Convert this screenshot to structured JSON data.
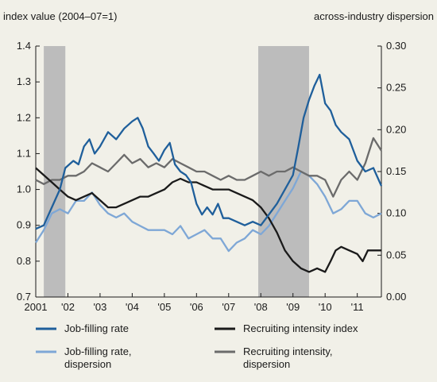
{
  "chart_data": {
    "type": "line",
    "y_left_label": "index value (2004–07=1)",
    "y_right_label": "across-industry dispersion",
    "x_ticks": [
      "2001",
      "'02",
      "'03",
      "'04",
      "'05",
      "'06",
      "'07",
      "'08",
      "'09",
      "'10",
      "'11"
    ],
    "x_range": [
      2001,
      2011.75
    ],
    "y_left": {
      "min": 0.7,
      "max": 1.4,
      "ticks": [
        "0.7",
        "0.8",
        "0.9",
        "1.0",
        "1.1",
        "1.2",
        "1.3",
        "1.4"
      ]
    },
    "y_right": {
      "min": 0.0,
      "max": 0.3,
      "ticks": [
        "0.00",
        "0.05",
        "0.10",
        "0.15",
        "0.20",
        "0.25",
        "0.30"
      ]
    },
    "recessions": [
      [
        2001.25,
        2001.92
      ],
      [
        2007.92,
        2009.5
      ]
    ],
    "grid": false,
    "legend_position": "bottom",
    "series": [
      {
        "name": "Job-filling rate",
        "axis": "left",
        "color": "#1f5f9b",
        "points": [
          [
            2001.0,
            0.89
          ],
          [
            2001.25,
            0.9
          ],
          [
            2001.5,
            0.95
          ],
          [
            2001.75,
            1.0
          ],
          [
            2001.92,
            1.06
          ],
          [
            2002.17,
            1.08
          ],
          [
            2002.33,
            1.07
          ],
          [
            2002.5,
            1.12
          ],
          [
            2002.67,
            1.14
          ],
          [
            2002.83,
            1.1
          ],
          [
            2003.0,
            1.12
          ],
          [
            2003.25,
            1.16
          ],
          [
            2003.5,
            1.14
          ],
          [
            2003.75,
            1.17
          ],
          [
            2004.0,
            1.19
          ],
          [
            2004.17,
            1.2
          ],
          [
            2004.33,
            1.17
          ],
          [
            2004.5,
            1.12
          ],
          [
            2004.67,
            1.1
          ],
          [
            2004.83,
            1.08
          ],
          [
            2005.0,
            1.11
          ],
          [
            2005.17,
            1.13
          ],
          [
            2005.33,
            1.07
          ],
          [
            2005.5,
            1.05
          ],
          [
            2005.67,
            1.04
          ],
          [
            2005.83,
            1.02
          ],
          [
            2006.0,
            0.96
          ],
          [
            2006.17,
            0.93
          ],
          [
            2006.33,
            0.95
          ],
          [
            2006.5,
            0.93
          ],
          [
            2006.67,
            0.96
          ],
          [
            2006.83,
            0.92
          ],
          [
            2007.0,
            0.92
          ],
          [
            2007.25,
            0.91
          ],
          [
            2007.5,
            0.9
          ],
          [
            2007.75,
            0.91
          ],
          [
            2008.0,
            0.9
          ],
          [
            2008.25,
            0.93
          ],
          [
            2008.5,
            0.96
          ],
          [
            2008.75,
            1.0
          ],
          [
            2009.0,
            1.04
          ],
          [
            2009.17,
            1.12
          ],
          [
            2009.33,
            1.2
          ],
          [
            2009.5,
            1.25
          ],
          [
            2009.67,
            1.29
          ],
          [
            2009.83,
            1.32
          ],
          [
            2010.0,
            1.24
          ],
          [
            2010.17,
            1.22
          ],
          [
            2010.33,
            1.18
          ],
          [
            2010.5,
            1.16
          ],
          [
            2010.75,
            1.14
          ],
          [
            2011.0,
            1.08
          ],
          [
            2011.25,
            1.05
          ],
          [
            2011.5,
            1.06
          ],
          [
            2011.75,
            1.01
          ]
        ]
      },
      {
        "name": "Recruiting intensity index",
        "axis": "left",
        "color": "#1a1a1a",
        "points": [
          [
            2001.0,
            1.06
          ],
          [
            2001.25,
            1.04
          ],
          [
            2001.5,
            1.02
          ],
          [
            2001.75,
            1.0
          ],
          [
            2002.0,
            0.98
          ],
          [
            2002.25,
            0.97
          ],
          [
            2002.5,
            0.98
          ],
          [
            2002.75,
            0.99
          ],
          [
            2003.0,
            0.97
          ],
          [
            2003.25,
            0.95
          ],
          [
            2003.5,
            0.95
          ],
          [
            2003.75,
            0.96
          ],
          [
            2004.0,
            0.97
          ],
          [
            2004.25,
            0.98
          ],
          [
            2004.5,
            0.98
          ],
          [
            2004.75,
            0.99
          ],
          [
            2005.0,
            1.0
          ],
          [
            2005.25,
            1.02
          ],
          [
            2005.5,
            1.03
          ],
          [
            2005.75,
            1.02
          ],
          [
            2006.0,
            1.02
          ],
          [
            2006.25,
            1.01
          ],
          [
            2006.5,
            1.0
          ],
          [
            2006.75,
            1.0
          ],
          [
            2007.0,
            1.0
          ],
          [
            2007.25,
            0.99
          ],
          [
            2007.5,
            0.98
          ],
          [
            2007.75,
            0.97
          ],
          [
            2008.0,
            0.95
          ],
          [
            2008.25,
            0.92
          ],
          [
            2008.5,
            0.88
          ],
          [
            2008.75,
            0.83
          ],
          [
            2009.0,
            0.8
          ],
          [
            2009.25,
            0.78
          ],
          [
            2009.5,
            0.77
          ],
          [
            2009.75,
            0.78
          ],
          [
            2010.0,
            0.77
          ],
          [
            2010.17,
            0.8
          ],
          [
            2010.33,
            0.83
          ],
          [
            2010.5,
            0.84
          ],
          [
            2010.75,
            0.83
          ],
          [
            2011.0,
            0.82
          ],
          [
            2011.17,
            0.8
          ],
          [
            2011.33,
            0.83
          ],
          [
            2011.5,
            0.83
          ],
          [
            2011.75,
            0.83
          ]
        ]
      },
      {
        "name": "Job-filling rate, dispersion",
        "axis": "right",
        "color": "#7ea7d6",
        "points": [
          [
            2001.0,
            0.065
          ],
          [
            2001.25,
            0.08
          ],
          [
            2001.5,
            0.1
          ],
          [
            2001.75,
            0.105
          ],
          [
            2002.0,
            0.1
          ],
          [
            2002.25,
            0.115
          ],
          [
            2002.5,
            0.115
          ],
          [
            2002.75,
            0.125
          ],
          [
            2003.0,
            0.11
          ],
          [
            2003.25,
            0.1
          ],
          [
            2003.5,
            0.095
          ],
          [
            2003.75,
            0.1
          ],
          [
            2004.0,
            0.09
          ],
          [
            2004.25,
            0.085
          ],
          [
            2004.5,
            0.08
          ],
          [
            2004.75,
            0.08
          ],
          [
            2005.0,
            0.08
          ],
          [
            2005.25,
            0.075
          ],
          [
            2005.5,
            0.085
          ],
          [
            2005.75,
            0.07
          ],
          [
            2006.0,
            0.075
          ],
          [
            2006.25,
            0.08
          ],
          [
            2006.5,
            0.07
          ],
          [
            2006.75,
            0.07
          ],
          [
            2007.0,
            0.055
          ],
          [
            2007.25,
            0.065
          ],
          [
            2007.5,
            0.07
          ],
          [
            2007.75,
            0.08
          ],
          [
            2008.0,
            0.075
          ],
          [
            2008.25,
            0.085
          ],
          [
            2008.5,
            0.1
          ],
          [
            2008.75,
            0.115
          ],
          [
            2009.0,
            0.13
          ],
          [
            2009.25,
            0.15
          ],
          [
            2009.5,
            0.145
          ],
          [
            2009.75,
            0.135
          ],
          [
            2010.0,
            0.12
          ],
          [
            2010.25,
            0.1
          ],
          [
            2010.5,
            0.105
          ],
          [
            2010.75,
            0.115
          ],
          [
            2011.0,
            0.115
          ],
          [
            2011.25,
            0.1
          ],
          [
            2011.5,
            0.095
          ],
          [
            2011.75,
            0.1
          ]
        ]
      },
      {
        "name": "Recruiting intensity, dispersion",
        "axis": "right",
        "color": "#6b6b6b",
        "points": [
          [
            2001.0,
            0.14
          ],
          [
            2001.25,
            0.135
          ],
          [
            2001.5,
            0.14
          ],
          [
            2001.75,
            0.14
          ],
          [
            2002.0,
            0.145
          ],
          [
            2002.25,
            0.145
          ],
          [
            2002.5,
            0.15
          ],
          [
            2002.75,
            0.16
          ],
          [
            2003.0,
            0.155
          ],
          [
            2003.25,
            0.15
          ],
          [
            2003.5,
            0.16
          ],
          [
            2003.75,
            0.17
          ],
          [
            2004.0,
            0.16
          ],
          [
            2004.25,
            0.165
          ],
          [
            2004.5,
            0.155
          ],
          [
            2004.75,
            0.16
          ],
          [
            2005.0,
            0.155
          ],
          [
            2005.25,
            0.165
          ],
          [
            2005.5,
            0.16
          ],
          [
            2005.75,
            0.155
          ],
          [
            2006.0,
            0.15
          ],
          [
            2006.25,
            0.15
          ],
          [
            2006.5,
            0.145
          ],
          [
            2006.75,
            0.14
          ],
          [
            2007.0,
            0.145
          ],
          [
            2007.25,
            0.14
          ],
          [
            2007.5,
            0.14
          ],
          [
            2007.75,
            0.145
          ],
          [
            2008.0,
            0.15
          ],
          [
            2008.25,
            0.145
          ],
          [
            2008.5,
            0.15
          ],
          [
            2008.75,
            0.15
          ],
          [
            2009.0,
            0.155
          ],
          [
            2009.25,
            0.15
          ],
          [
            2009.5,
            0.145
          ],
          [
            2009.75,
            0.145
          ],
          [
            2010.0,
            0.14
          ],
          [
            2010.25,
            0.12
          ],
          [
            2010.5,
            0.14
          ],
          [
            2010.75,
            0.15
          ],
          [
            2011.0,
            0.14
          ],
          [
            2011.25,
            0.16
          ],
          [
            2011.5,
            0.19
          ],
          [
            2011.75,
            0.175
          ]
        ]
      }
    ]
  }
}
